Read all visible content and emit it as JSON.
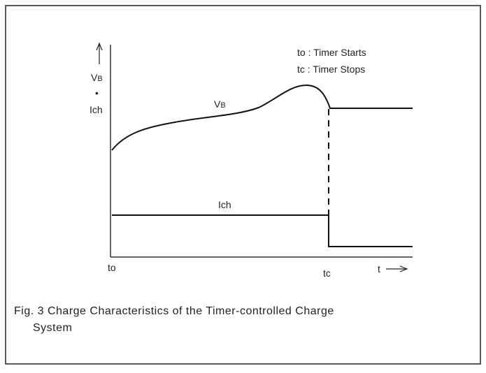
{
  "legend": {
    "lines": [
      "to : Timer Starts",
      "tc : Timer Stops"
    ]
  },
  "y_axis": {
    "label_v": {
      "base": "V",
      "sub": "B"
    },
    "dot": "•",
    "label_i": "Ich"
  },
  "curves": {
    "vb": {
      "base": "V",
      "sub": "B"
    },
    "ich": "Ich"
  },
  "x_axis": {
    "start": "to",
    "stop": "tc",
    "t": "t"
  },
  "caption": {
    "lines": [
      "Fig. 3 Charge Characteristics of the Timer-controlled Charge",
      "System"
    ]
  }
}
